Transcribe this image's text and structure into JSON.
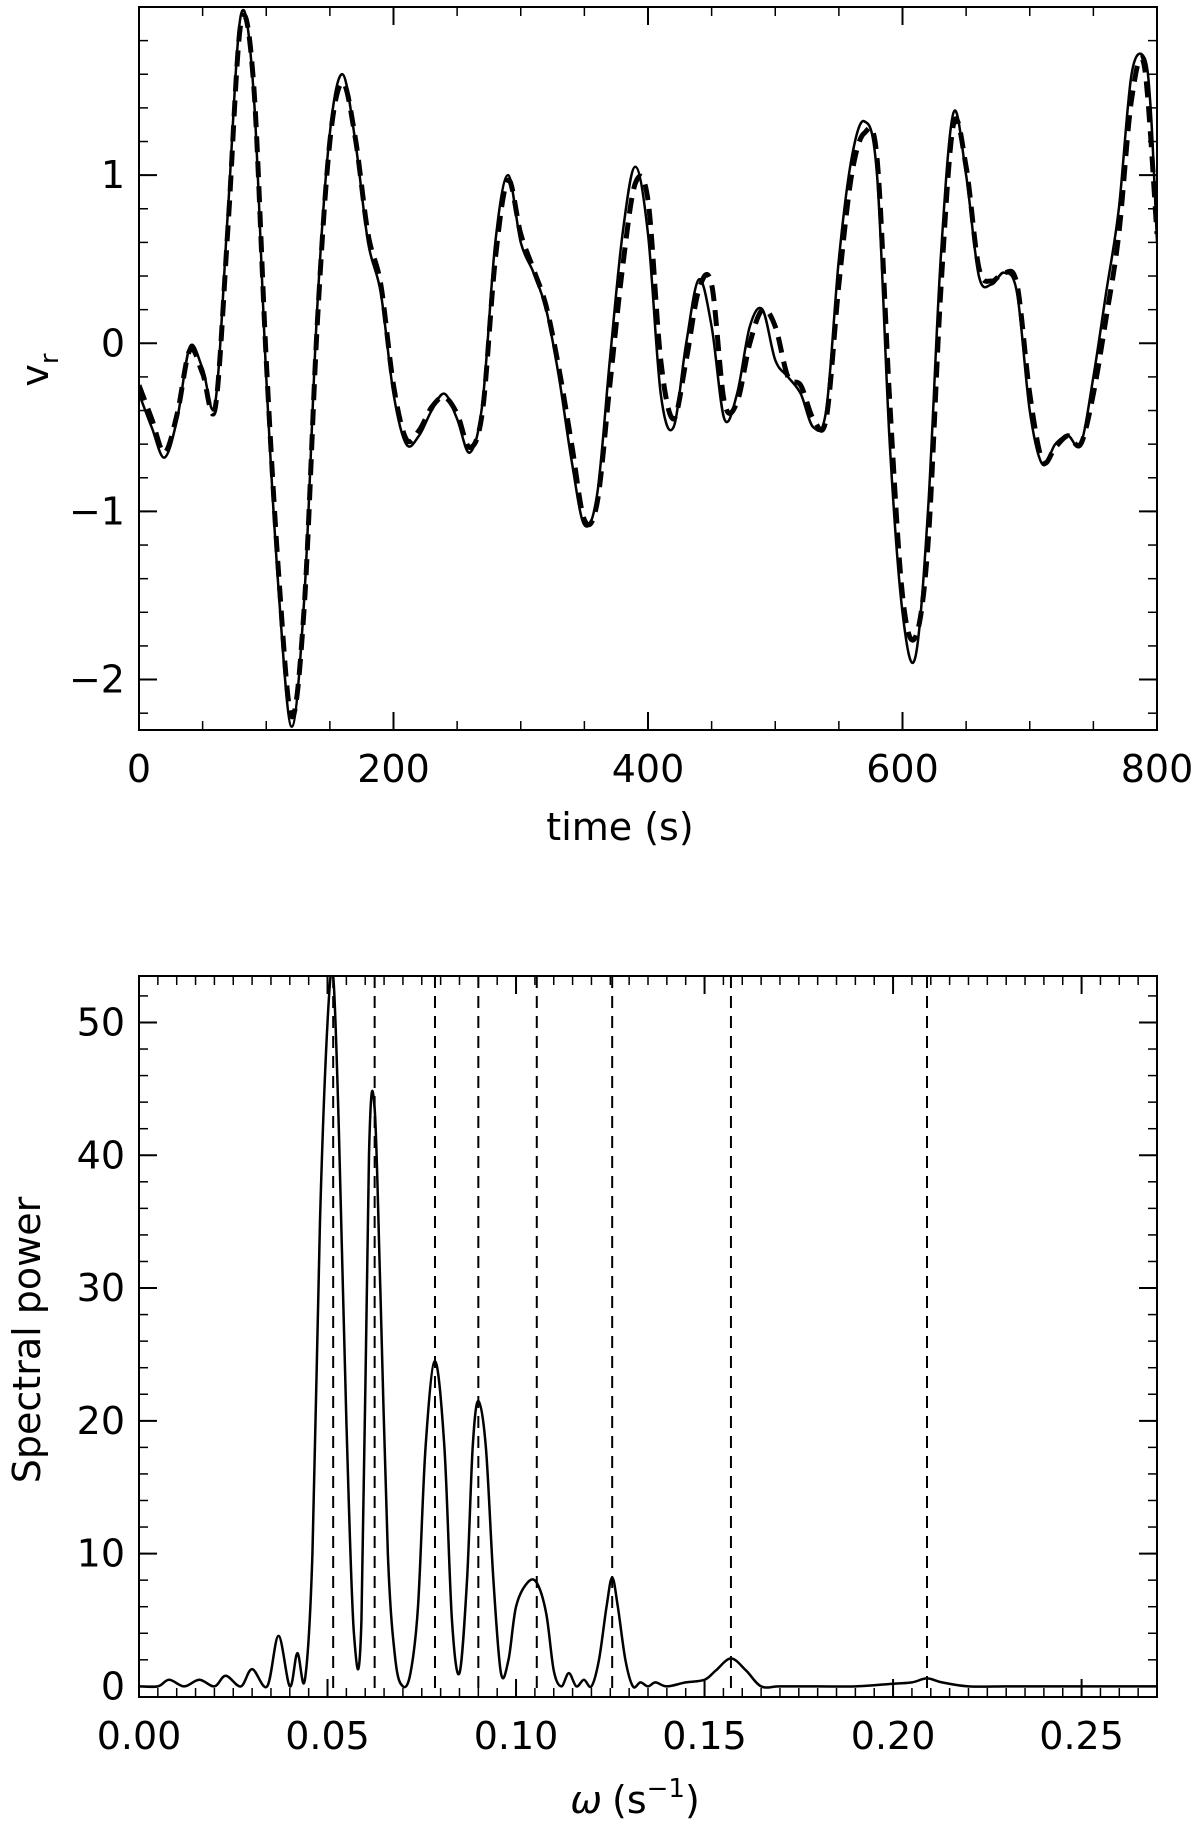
{
  "chart_data": [
    {
      "type": "line",
      "xlabel": "time (s)",
      "ylabel_main": "v",
      "ylabel_sub": "r",
      "xlim": [
        0,
        800
      ],
      "ylim": [
        -2.3,
        2.0
      ],
      "x_ticks": [
        {
          "value": 0,
          "label": "0"
        },
        {
          "value": 200,
          "label": "200"
        },
        {
          "value": 400,
          "label": "400"
        },
        {
          "value": 600,
          "label": "600"
        },
        {
          "value": 800,
          "label": "800"
        }
      ],
      "y_ticks": [
        {
          "value": -2,
          "label": "−2"
        },
        {
          "value": -1,
          "label": "−1"
        },
        {
          "value": 0,
          "label": "0"
        },
        {
          "value": 1,
          "label": "1"
        }
      ],
      "series": [
        {
          "style": "solid",
          "x": [
            0,
            10,
            20,
            30,
            40,
            50,
            60,
            70,
            80,
            90,
            100,
            110,
            120,
            130,
            140,
            150,
            160,
            170,
            180,
            190,
            200,
            210,
            220,
            230,
            240,
            250,
            260,
            270,
            280,
            290,
            300,
            310,
            320,
            330,
            340,
            350,
            360,
            370,
            380,
            390,
            400,
            410,
            420,
            430,
            440,
            450,
            460,
            470,
            480,
            490,
            500,
            510,
            520,
            530,
            540,
            550,
            560,
            570,
            580,
            590,
            600,
            610,
            620,
            630,
            640,
            650,
            660,
            670,
            680,
            690,
            700,
            710,
            720,
            730,
            740,
            750,
            760,
            770,
            780,
            790,
            795,
            800
          ],
          "y": [
            -0.3,
            -0.5,
            -0.68,
            -0.45,
            -0.02,
            -0.15,
            -0.35,
            0.8,
            1.95,
            1.5,
            -0.2,
            -1.5,
            -2.28,
            -1.5,
            0.2,
            1.25,
            1.6,
            1.2,
            0.6,
            0.3,
            -0.3,
            -0.6,
            -0.55,
            -0.4,
            -0.3,
            -0.45,
            -0.65,
            -0.35,
            0.6,
            1.0,
            0.6,
            0.42,
            0.2,
            -0.2,
            -0.7,
            -1.08,
            -0.9,
            -0.1,
            0.65,
            1.05,
            0.65,
            -0.3,
            -0.5,
            0.0,
            0.38,
            0.1,
            -0.45,
            -0.3,
            0.1,
            0.2,
            -0.1,
            -0.2,
            -0.3,
            -0.5,
            -0.4,
            0.5,
            1.1,
            1.32,
            1.0,
            -0.6,
            -1.6,
            -1.87,
            -1.0,
            0.5,
            1.37,
            1.0,
            0.4,
            0.35,
            0.42,
            0.3,
            -0.4,
            -0.72,
            -0.6,
            -0.55,
            -0.6,
            -0.2,
            0.3,
            0.8,
            1.6,
            1.7,
            1.4,
            0.6
          ]
        },
        {
          "style": "dashed",
          "x": [
            0,
            10,
            20,
            30,
            40,
            50,
            60,
            70,
            80,
            90,
            100,
            110,
            120,
            130,
            140,
            150,
            160,
            170,
            180,
            190,
            200,
            210,
            220,
            230,
            240,
            250,
            260,
            270,
            280,
            290,
            300,
            310,
            320,
            330,
            340,
            350,
            360,
            370,
            380,
            390,
            400,
            410,
            420,
            430,
            440,
            450,
            460,
            470,
            480,
            490,
            500,
            510,
            520,
            530,
            540,
            550,
            560,
            570,
            580,
            590,
            600,
            610,
            620,
            630,
            640,
            650,
            660,
            670,
            680,
            690,
            700,
            710,
            720,
            730,
            740,
            750,
            760,
            770,
            780,
            790,
            800
          ],
          "y": [
            -0.25,
            -0.45,
            -0.65,
            -0.42,
            -0.04,
            -0.18,
            -0.38,
            0.7,
            1.9,
            1.55,
            -0.1,
            -1.4,
            -2.22,
            -1.55,
            0.1,
            1.2,
            1.55,
            1.22,
            0.65,
            0.35,
            -0.25,
            -0.57,
            -0.52,
            -0.38,
            -0.32,
            -0.42,
            -0.62,
            -0.4,
            0.5,
            0.97,
            0.65,
            0.44,
            0.22,
            -0.15,
            -0.6,
            -1.05,
            -0.95,
            -0.25,
            0.45,
            0.95,
            0.85,
            -0.1,
            -0.45,
            -0.1,
            0.32,
            0.35,
            -0.35,
            -0.35,
            0.0,
            0.2,
            0.1,
            -0.2,
            -0.25,
            -0.45,
            -0.45,
            0.35,
            1.0,
            1.25,
            1.1,
            -0.35,
            -1.5,
            -1.75,
            -1.2,
            0.3,
            1.3,
            1.05,
            0.45,
            0.37,
            0.42,
            0.35,
            -0.3,
            -0.7,
            -0.62,
            -0.55,
            -0.6,
            -0.3,
            0.15,
            0.65,
            1.45,
            1.65,
            0.65
          ]
        }
      ]
    },
    {
      "type": "line",
      "xlabel_symbol": "ω",
      "xlabel_unit_pre": "(s",
      "xlabel_unit_exp": "−1",
      "xlabel_unit_post": ")",
      "ylabel": "Spectral power",
      "xlim": [
        0,
        0.27
      ],
      "ylim": [
        -0.8,
        53.5
      ],
      "x_ticks": [
        {
          "value": 0.0,
          "label": "0.00"
        },
        {
          "value": 0.05,
          "label": "0.05"
        },
        {
          "value": 0.1,
          "label": "0.10"
        },
        {
          "value": 0.15,
          "label": "0.15"
        },
        {
          "value": 0.2,
          "label": "0.20"
        },
        {
          "value": 0.25,
          "label": "0.25"
        }
      ],
      "y_ticks": [
        {
          "value": 0,
          "label": "0"
        },
        {
          "value": 10,
          "label": "10"
        },
        {
          "value": 20,
          "label": "20"
        },
        {
          "value": 30,
          "label": "30"
        },
        {
          "value": 40,
          "label": "40"
        },
        {
          "value": 50,
          "label": "50"
        }
      ],
      "vertical_dashed_lines": [
        0.0515,
        0.0625,
        0.0785,
        0.09,
        0.1055,
        0.1255,
        0.157,
        0.209
      ],
      "series": [
        {
          "style": "solid",
          "x": [
            0.0,
            0.005,
            0.008,
            0.012,
            0.016,
            0.02,
            0.023,
            0.027,
            0.03,
            0.034,
            0.037,
            0.04,
            0.042,
            0.044,
            0.046,
            0.048,
            0.05,
            0.0515,
            0.053,
            0.055,
            0.057,
            0.059,
            0.061,
            0.0625,
            0.064,
            0.066,
            0.068,
            0.07,
            0.072,
            0.074,
            0.076,
            0.0785,
            0.081,
            0.083,
            0.085,
            0.087,
            0.0885,
            0.09,
            0.092,
            0.094,
            0.096,
            0.098,
            0.1,
            0.103,
            0.1055,
            0.108,
            0.11,
            0.112,
            0.114,
            0.116,
            0.118,
            0.12,
            0.122,
            0.124,
            0.1255,
            0.127,
            0.129,
            0.131,
            0.133,
            0.135,
            0.137,
            0.14,
            0.145,
            0.15,
            0.153,
            0.157,
            0.161,
            0.165,
            0.17,
            0.18,
            0.19,
            0.2,
            0.205,
            0.209,
            0.213,
            0.22,
            0.23,
            0.24,
            0.25,
            0.26,
            0.27
          ],
          "y": [
            0,
            0,
            0.5,
            0,
            0.5,
            0,
            0.8,
            0,
            1.3,
            0,
            3.8,
            0,
            2.5,
            0.5,
            10,
            35,
            50,
            53.5,
            42,
            20,
            4,
            5,
            40,
            43.5,
            30,
            10,
            2,
            0,
            1,
            6,
            18,
            24.5,
            18,
            5,
            1,
            8,
            18,
            21.5,
            18,
            8,
            1,
            2,
            6,
            7.8,
            7.8,
            5.5,
            1.2,
            0,
            1,
            0,
            0.5,
            0,
            2,
            6,
            8.2,
            6,
            2,
            0,
            0.3,
            0,
            0.3,
            0,
            0.3,
            0.5,
            1.2,
            2.1,
            1.2,
            0,
            0,
            0,
            0,
            0.2,
            0.3,
            0.6,
            0.3,
            0,
            0,
            0,
            0,
            0,
            0
          ]
        }
      ]
    }
  ]
}
